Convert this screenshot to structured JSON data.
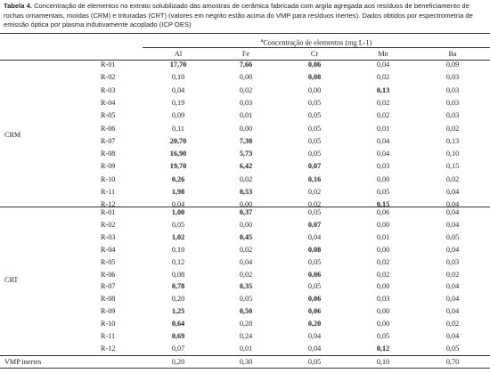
{
  "caption": {
    "label": "Tabela 4.",
    "text": "Concentração de elementos no extrato solubilizado das amostras de cerâmica fabricada com argila agregada aos resíduos de beneficiamento de rochas ornamentais, moídas (CRM) e trituradas (CRT) (valores em negrito estão acima do VMP para resíduos inertes). Dados obtidos por espectrometria de emissão óptica por plasma indutivamente acoplado (ICP OES)"
  },
  "table": {
    "header": {
      "superscript": "a",
      "text": "Concentração de elementos (mg L-1)"
    },
    "columns": [
      "Al",
      "Fe",
      "Cr",
      "Mn",
      "Ba"
    ],
    "groups": [
      {
        "name": "CRM",
        "rows": [
          {
            "label": "R-01",
            "values": [
              "17,70",
              "7,66",
              "0,06",
              "0,04",
              "0,09"
            ],
            "bold": [
              true,
              true,
              true,
              false,
              false
            ]
          },
          {
            "label": "R-02",
            "values": [
              "0,10",
              "0,00",
              "0,08",
              "0,02",
              "0,03"
            ],
            "bold": [
              false,
              false,
              true,
              false,
              false
            ]
          },
          {
            "label": "R-03",
            "values": [
              "0,04",
              "0,02",
              "0,00",
              "0,13",
              "0,03"
            ],
            "bold": [
              false,
              false,
              false,
              true,
              false
            ]
          },
          {
            "label": "R-04",
            "values": [
              "0,19",
              "0,03",
              "0,05",
              "0,02",
              "0,03"
            ],
            "bold": [
              false,
              false,
              false,
              false,
              false
            ]
          },
          {
            "label": "R-05",
            "values": [
              "0,09",
              "0,01",
              "0,05",
              "0,02",
              "0,03"
            ],
            "bold": [
              false,
              false,
              false,
              false,
              false
            ]
          },
          {
            "label": "R-06",
            "values": [
              "0,11",
              "0,00",
              "0,05",
              "0,01",
              "0,02"
            ],
            "bold": [
              false,
              false,
              false,
              false,
              false
            ]
          },
          {
            "label": "R-07",
            "values": [
              "20,70",
              "7,38",
              "0,05",
              "0,04",
              "0,13"
            ],
            "bold": [
              true,
              true,
              false,
              false,
              false
            ]
          },
          {
            "label": "R-08",
            "values": [
              "16,90",
              "5,73",
              "0,05",
              "0,04",
              "0,10"
            ],
            "bold": [
              true,
              true,
              false,
              false,
              false
            ]
          },
          {
            "label": "R-09",
            "values": [
              "19,70",
              "6,42",
              "0,07",
              "0,03",
              "0,15"
            ],
            "bold": [
              true,
              true,
              true,
              false,
              false
            ]
          },
          {
            "label": "R-10",
            "values": [
              "0,26",
              "0,02",
              "0,16",
              "0,00",
              "0,02"
            ],
            "bold": [
              true,
              false,
              true,
              false,
              false
            ]
          },
          {
            "label": "R-11",
            "values": [
              "1,98",
              "0,53",
              "0,02",
              "0,05",
              "0,04"
            ],
            "bold": [
              true,
              true,
              false,
              false,
              false
            ]
          },
          {
            "label": "R-12",
            "values": [
              "0,04",
              "0,00",
              "0,02",
              "0,15",
              "0,04"
            ],
            "bold": [
              false,
              false,
              false,
              true,
              false
            ]
          }
        ]
      },
      {
        "name": "CRT",
        "rows": [
          {
            "label": "R-01",
            "values": [
              "1,00",
              "0,37",
              "0,05",
              "0,06",
              "0,04"
            ],
            "bold": [
              true,
              true,
              false,
              false,
              false
            ]
          },
          {
            "label": "R-02",
            "values": [
              "0,05",
              "0,00",
              "0,07",
              "0,00",
              "0,04"
            ],
            "bold": [
              false,
              false,
              true,
              false,
              false
            ]
          },
          {
            "label": "R-03",
            "values": [
              "1,02",
              "0,45",
              "0,04",
              "0,01",
              "0,05"
            ],
            "bold": [
              true,
              true,
              false,
              false,
              false
            ]
          },
          {
            "label": "R-04",
            "values": [
              "0,10",
              "0,02",
              "0,08",
              "0,00",
              "0,04"
            ],
            "bold": [
              false,
              false,
              true,
              false,
              false
            ]
          },
          {
            "label": "R-05",
            "values": [
              "0,12",
              "0,04",
              "0,05",
              "0,02",
              "0,03"
            ],
            "bold": [
              false,
              false,
              false,
              false,
              false
            ]
          },
          {
            "label": "R-06",
            "values": [
              "0,08",
              "0,02",
              "0,06",
              "0,02",
              "0,02"
            ],
            "bold": [
              false,
              false,
              true,
              false,
              false
            ]
          },
          {
            "label": "R-07",
            "values": [
              "0,78",
              "0,35",
              "0,05",
              "0,00",
              "0,04"
            ],
            "bold": [
              true,
              true,
              false,
              false,
              false
            ]
          },
          {
            "label": "R-08",
            "values": [
              "0,20",
              "0,05",
              "0,06",
              "0,03",
              "0,04"
            ],
            "bold": [
              false,
              false,
              true,
              false,
              false
            ]
          },
          {
            "label": "R-09",
            "values": [
              "1,25",
              "0,50",
              "0,06",
              "0,00",
              "0,04"
            ],
            "bold": [
              true,
              true,
              true,
              false,
              false
            ]
          },
          {
            "label": "R-10",
            "values": [
              "0,64",
              "0,28",
              "0,20",
              "0,00",
              "0,02"
            ],
            "bold": [
              true,
              false,
              true,
              false,
              false
            ]
          },
          {
            "label": "R-11",
            "values": [
              "0,69",
              "0,24",
              "0,04",
              "0,05",
              "0,04"
            ],
            "bold": [
              true,
              false,
              false,
              false,
              false
            ]
          },
          {
            "label": "R-12",
            "values": [
              "0,07",
              "0,01",
              "0,04",
              "0,12",
              "0,05"
            ],
            "bold": [
              false,
              false,
              false,
              true,
              false
            ]
          }
        ]
      }
    ],
    "footer": {
      "label": "VMP inertes",
      "values": [
        "0,20",
        "0,30",
        "0,05",
        "0,10",
        "0,70"
      ]
    }
  }
}
